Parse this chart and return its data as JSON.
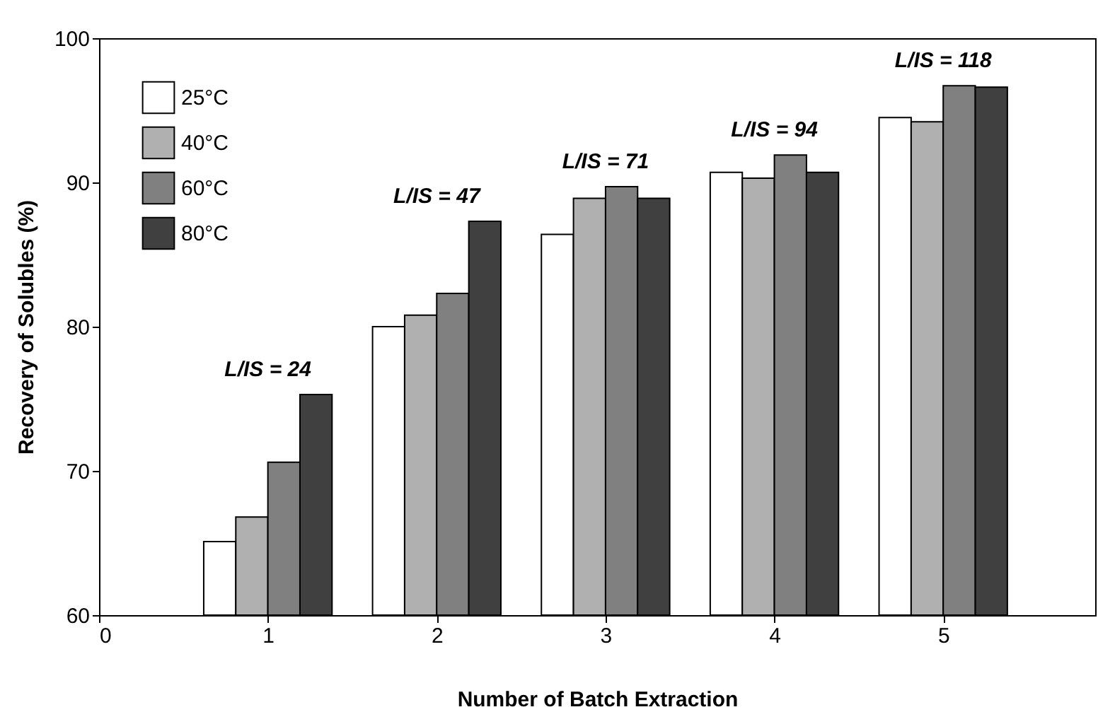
{
  "chart_data": {
    "type": "bar",
    "xlabel": "Number of Batch Extraction",
    "ylabel": "Recovery of Solubles (%)",
    "x": [
      1,
      2,
      3,
      4,
      5
    ],
    "xlim": [
      0,
      5.9
    ],
    "xticks": [
      0,
      1,
      2,
      3,
      4,
      5
    ],
    "ylim": [
      60,
      100
    ],
    "yticks": [
      60,
      70,
      80,
      90,
      100
    ],
    "series": [
      {
        "name": "25°C",
        "color": "#ffffff",
        "values": [
          65.1,
          80.0,
          86.4,
          90.7,
          94.5
        ]
      },
      {
        "name": "40°C",
        "color": "#b0b0b0",
        "values": [
          66.8,
          80.8,
          88.9,
          90.3,
          94.2
        ]
      },
      {
        "name": "60°C",
        "color": "#808080",
        "values": [
          70.6,
          82.3,
          89.7,
          91.9,
          96.7
        ]
      },
      {
        "name": "80°C",
        "color": "#404040",
        "values": [
          75.3,
          87.3,
          88.9,
          90.7,
          96.6
        ]
      }
    ],
    "legend": "top left",
    "grid": false,
    "annotations": [
      "L/IS = 24",
      "L/IS = 47",
      "L/IS = 71",
      "L/IS = 94",
      "L/IS = 118"
    ]
  }
}
